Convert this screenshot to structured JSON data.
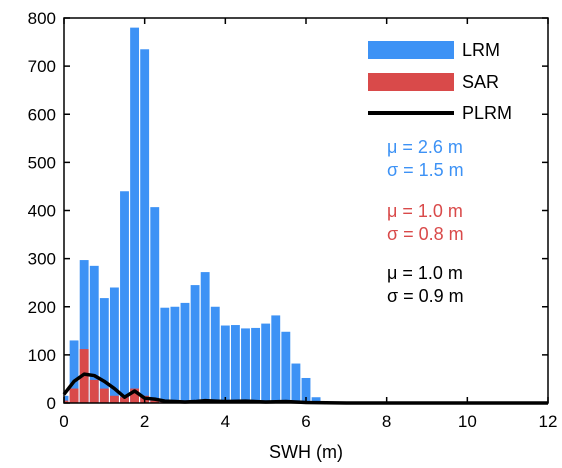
{
  "chart_data": {
    "type": "bar",
    "xlabel": "SWH (m)",
    "ylabel": "",
    "xlim": [
      0,
      12
    ],
    "ylim": [
      0,
      800
    ],
    "xticks": [
      "0",
      "2",
      "4",
      "6",
      "8",
      "10",
      "12"
    ],
    "yticks": [
      "0",
      "100",
      "200",
      "300",
      "400",
      "500",
      "600",
      "700",
      "800"
    ],
    "bin_width": 0.25,
    "legend_position": "top-right",
    "series": [
      {
        "name": "LRM",
        "kind": "bar",
        "color": "#3d92f5",
        "x": [
          0.0,
          0.25,
          0.5,
          0.75,
          1.0,
          1.25,
          1.5,
          1.75,
          2.0,
          2.25,
          2.5,
          2.75,
          3.0,
          3.25,
          3.5,
          3.75,
          4.0,
          4.25,
          4.5,
          4.75,
          5.0,
          5.25,
          5.5,
          5.75,
          6.0,
          6.25
        ],
        "values": [
          15,
          130,
          297,
          285,
          218,
          240,
          440,
          780,
          735,
          407,
          198,
          200,
          208,
          245,
          272,
          200,
          161,
          162,
          155,
          156,
          165,
          182,
          148,
          82,
          52,
          12
        ]
      },
      {
        "name": "SAR",
        "kind": "bar",
        "color": "#d94a4a",
        "x": [
          0.0,
          0.25,
          0.5,
          0.75,
          1.0,
          1.25,
          1.5,
          1.75,
          2.0,
          2.25,
          2.5
        ],
        "values": [
          5,
          30,
          112,
          48,
          30,
          15,
          12,
          30,
          15,
          5,
          2
        ]
      },
      {
        "name": "PLRM",
        "kind": "line",
        "color": "#000000",
        "x": [
          0.0,
          0.25,
          0.5,
          0.75,
          1.0,
          1.25,
          1.5,
          1.75,
          2.0,
          2.25,
          2.5,
          2.75,
          3.0,
          3.25,
          3.5,
          3.75,
          4.0,
          4.5,
          5.0,
          5.5,
          6.0,
          7.0,
          8.0,
          10.0,
          12.0
        ],
        "values": [
          18,
          45,
          60,
          57,
          45,
          30,
          12,
          25,
          10,
          8,
          4,
          3,
          2,
          3,
          5,
          4,
          3,
          4,
          2,
          3,
          1,
          0,
          0,
          0,
          0
        ]
      }
    ],
    "stats": [
      {
        "mu": "μ = 2.6 m",
        "sigma": "σ = 1.5 m",
        "color": "#3d92f5"
      },
      {
        "mu": "μ = 1.0 m",
        "sigma": "σ = 0.8 m",
        "color": "#d94a4a"
      },
      {
        "mu": "μ = 1.0 m",
        "sigma": "σ = 0.9 m",
        "color": "#000000"
      }
    ]
  }
}
